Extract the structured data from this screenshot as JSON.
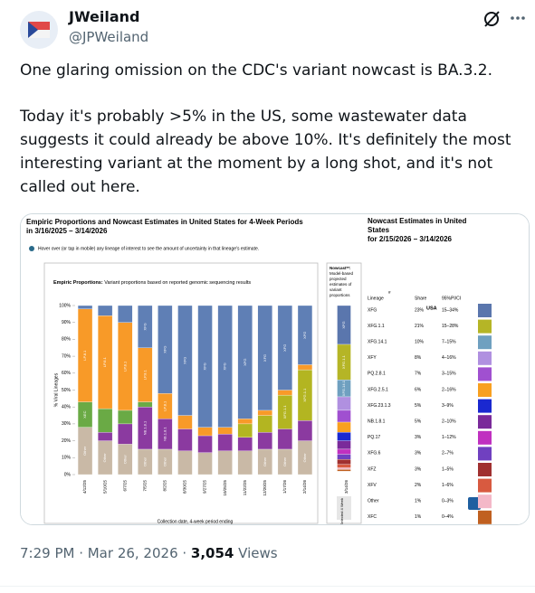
{
  "tweet": {
    "name": "JWeiland",
    "handle": "@JPWeiland",
    "text_lines": [
      "One glaring omission on the CDC's variant nowcast is BA.3.2.",
      "Today it's probably >5% in the US, some wastewater data",
      "suggests it could already be above 10%.  It's definitely the most",
      "interesting variant at the moment by a long shot, and it's not",
      "called out here."
    ],
    "time": "7:29 PM · Mar 26, 2026 · ",
    "views_count": "3,054",
    "views_word": " Views"
  },
  "chart_data": {
    "type": "bar",
    "stacked": true,
    "title": [
      "Empiric Proportions and Nowcast Estimates in United States for 4-Week Periods",
      "in 3/16/2025 – 3/14/2026"
    ],
    "hover_note": "Hover over (or tap in mobile) any lineage of interest to see the amount of uncertainty in that lineage's estimate.",
    "subtitle_bold": "Empiric Proportions:",
    "subtitle": " Variant proportions based on reported genomic sequencing results",
    "y_label": "% Viral Lineages",
    "x_label": "Collection date, 4-week period ending",
    "categories": [
      "4/12/25",
      "5/10/25",
      "6/7/25",
      "7/5/25",
      "8/2/25",
      "8/30/25",
      "9/27/25",
      "10/25/25",
      "11/22/25",
      "12/20/25",
      "1/17/26",
      "2/14/26"
    ],
    "series": [
      {
        "name": "Other",
        "color": "#c9b9a6",
        "values": [
          28,
          20,
          18,
          15,
          15,
          14,
          13,
          14,
          14,
          15,
          15,
          20
        ]
      },
      {
        "name": "NB.1.8.1",
        "color": "#8b3aa0",
        "values": [
          0,
          5,
          12,
          25,
          18,
          13,
          10,
          10,
          8,
          10,
          12,
          12
        ]
      },
      {
        "name": "XFG.1.1",
        "color": "#b3b521",
        "values": [
          0,
          0,
          0,
          0,
          0,
          0,
          0,
          0,
          8,
          10,
          20,
          30
        ]
      },
      {
        "name": "XEC",
        "color": "#6aaa45",
        "values": [
          15,
          14,
          8,
          3,
          0,
          0,
          0,
          0,
          0,
          0,
          0,
          0
        ]
      },
      {
        "name": "LP.8.1",
        "color": "#f89a28",
        "values": [
          55,
          55,
          52,
          32,
          15,
          8,
          5,
          4,
          3,
          3,
          3,
          3
        ]
      },
      {
        "name": "XFG",
        "color": "#5f7fb5",
        "values": [
          2,
          6,
          10,
          25,
          52,
          65,
          72,
          72,
          67,
          62,
          50,
          35
        ]
      }
    ],
    "ylim": [
      0,
      100
    ],
    "yticks": [
      {
        "value": 0,
        "label": "0%"
      },
      {
        "value": 10,
        "label": "10%"
      },
      {
        "value": 20,
        "label": "20%"
      },
      {
        "value": 30,
        "label": "30%"
      },
      {
        "value": 40,
        "label": "40%"
      },
      {
        "value": 50,
        "label": "50%"
      },
      {
        "value": 60,
        "label": "60%"
      },
      {
        "value": 70,
        "label": "70%"
      },
      {
        "value": 80,
        "label": "80%"
      },
      {
        "value": 90,
        "label": "90%"
      },
      {
        "value": 100,
        "label": "100%"
      }
    ],
    "nowcast_header": [
      "Nowcast**:",
      "Model-based",
      "projected",
      "estimates of",
      "variant",
      "proportions"
    ],
    "nowcast_category": "3/14/26",
    "nowcast_period_label": "Selected 4 Week",
    "nowcast": {
      "title": [
        "Nowcast Estimates in United",
        "States",
        "for 2/15/2026 – 3/14/2026"
      ],
      "region": "USA",
      "columns": [
        "Lineage",
        "Share",
        "95%PI/CI"
      ],
      "hash": "#",
      "lineages": [
        "XFG",
        "XFG.1.1",
        "XFG.14.1",
        "XFY",
        "PQ.2.8.1",
        "XFG.2.5.1",
        "XFG.23.1.3",
        "NB.1.8.1",
        "PQ.17",
        "XFG.6",
        "XFZ",
        "XFV",
        "Other",
        "XFC"
      ],
      "values": [
        23,
        21,
        10,
        8,
        7,
        6,
        5,
        5,
        3,
        3,
        3,
        2,
        1,
        1
      ],
      "value_labels": [
        "23%",
        "21%",
        "10%",
        "8%",
        "7%",
        "6%",
        "5%",
        "5%",
        "3%",
        "3%",
        "3%",
        "2%",
        "1%",
        "1%"
      ],
      "intervals": [
        "15–34%",
        "15–28%",
        "7–15%",
        "4–16%",
        "3–15%",
        "2–16%",
        "3–9%",
        "2–10%",
        "1–12%",
        "2–7%",
        "1–5%",
        "1–6%",
        "0–3%",
        "0–4%"
      ],
      "colors": [
        "#5a76ad",
        "#b5b526",
        "#6fa0c0",
        "#b090e0",
        "#a050d0",
        "#f8a020",
        "#1a28d0",
        "#7a2a9a",
        "#c030c0",
        "#7040c0",
        "#a03030",
        "#d85a40",
        "#f4b8c8",
        "#c06020"
      ]
    }
  }
}
